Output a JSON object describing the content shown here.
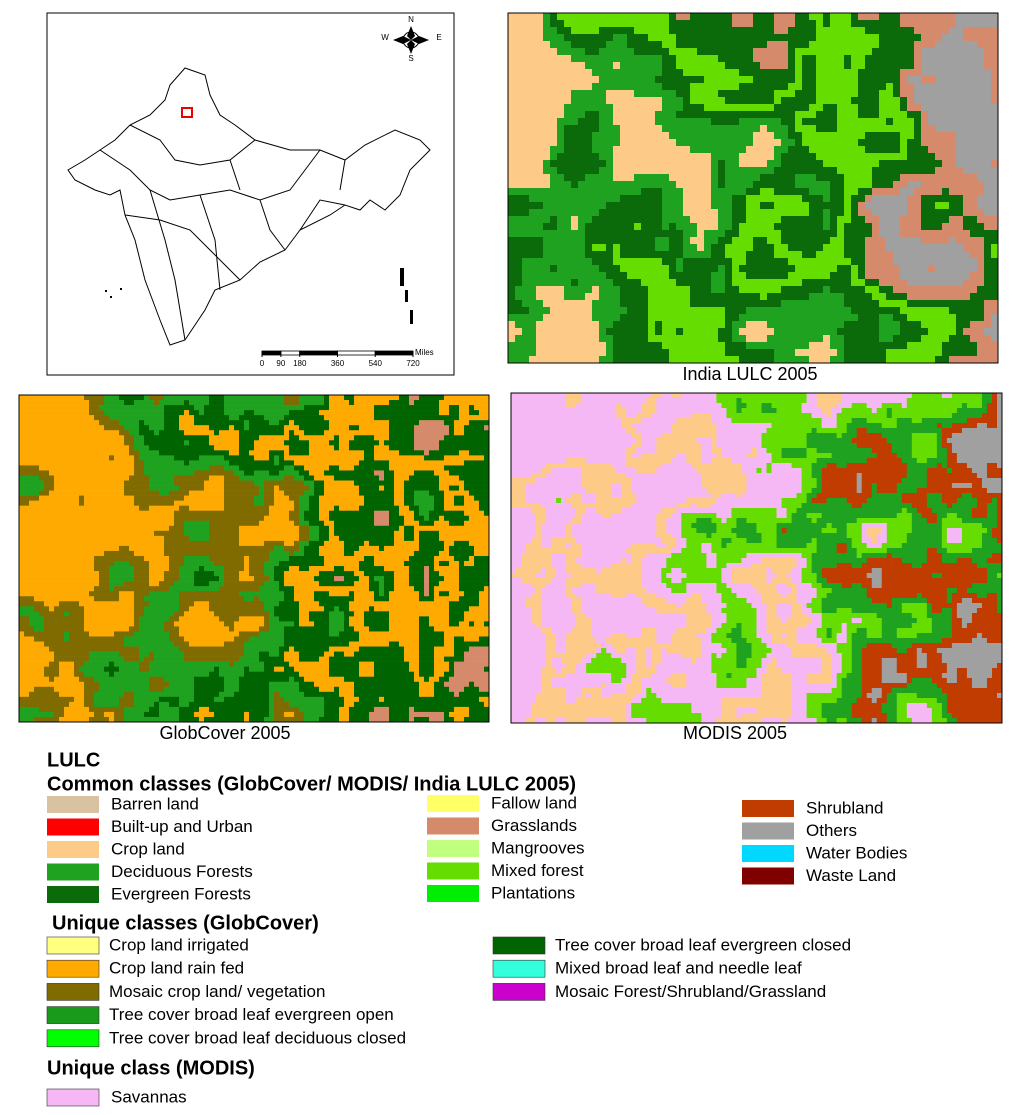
{
  "inset_map": {
    "compass": {
      "north": "N",
      "west": "W",
      "east": "E",
      "south": "S"
    },
    "scale_bar": {
      "ticks": [
        0,
        90,
        180,
        360,
        540,
        720
      ],
      "unit": "Miles"
    }
  },
  "panels": [
    {
      "caption": "India LULC 2005"
    },
    {
      "caption": "GlobCover 2005"
    },
    {
      "caption": "MODIS 2005"
    }
  ],
  "legend": {
    "title": "LULC",
    "groups": [
      {
        "title": "Common classes (GlobCover/ MODIS/ India LULC 2005)",
        "items": [
          {
            "label": "Barren land",
            "color": "#d9c2a1"
          },
          {
            "label": "Built-up and Urban",
            "color": "#ff0000"
          },
          {
            "label": "Crop land",
            "color": "#fdca88"
          },
          {
            "label": "Deciduous Forests",
            "color": "#1fa21f"
          },
          {
            "label": "Evergreen Forests",
            "color": "#0b6b0b"
          },
          {
            "label": "Fallow land",
            "color": "#ffff66"
          },
          {
            "label": "Grasslands",
            "color": "#d68a6c"
          },
          {
            "label": "Mangrooves",
            "color": "#c0ff80"
          },
          {
            "label": "Mixed forest",
            "color": "#66dd00"
          },
          {
            "label": "Plantations",
            "color": "#00ee00"
          },
          {
            "label": "Shrubland",
            "color": "#c03c00"
          },
          {
            "label": "Others",
            "color": "#a0a0a0"
          },
          {
            "label": "Water Bodies",
            "color": "#00d8ff"
          },
          {
            "label": "Waste Land",
            "color": "#800000"
          }
        ]
      },
      {
        "title": "Unique classes (GlobCover)",
        "items": [
          {
            "label": "Crop land irrigated",
            "color": "#ffff80"
          },
          {
            "label": "Crop land rain fed",
            "color": "#ffaa00"
          },
          {
            "label": "Mosaic crop land/ vegetation",
            "color": "#806b00"
          },
          {
            "label": "Tree cover broad leaf evergreen open",
            "color": "#1a9a1a"
          },
          {
            "label": "Tree cover broad leaf deciduous closed",
            "color": "#00ff00"
          },
          {
            "label": "Tree cover broad leaf evergreen closed",
            "color": "#006400"
          },
          {
            "label": "Mixed broad leaf and needle leaf",
            "color": "#33ffdd"
          },
          {
            "label": "Mosaic Forest/Shrubland/Grassland",
            "color": "#cc00cc"
          }
        ]
      },
      {
        "title": "Unique class (MODIS)",
        "items": [
          {
            "label": "Savannas",
            "color": "#f5b8f5"
          }
        ]
      }
    ]
  }
}
